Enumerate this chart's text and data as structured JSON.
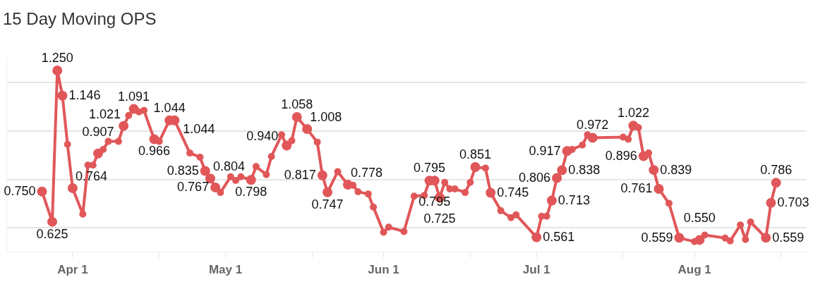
{
  "chart_data": {
    "type": "line",
    "title": "15 Day Moving OPS",
    "x": [
      "--03-26",
      "--03-28",
      "--03-29",
      "--03-30",
      "--03-31",
      "--04-01",
      "--04-03",
      "--04-04",
      "--04-05",
      "--04-06",
      "--04-07",
      "--04-08",
      "--04-10",
      "--04-11",
      "--04-12",
      "--04-13",
      "--04-14",
      "--04-15",
      "--04-17",
      "--04-18",
      "--04-20",
      "--04-21",
      "--04-24",
      "--04-26",
      "--04-27",
      "--04-28",
      "--04-29",
      "--04-30",
      "--05-02",
      "--05-03",
      "--05-04",
      "--05-06",
      "--05-07",
      "--05-09",
      "--05-10",
      "--05-12",
      "--05-13",
      "--05-14",
      "--05-15",
      "--05-17",
      "--05-19",
      "--05-20",
      "--05-21",
      "--05-23",
      "--05-25",
      "--05-26",
      "--05-27",
      "--05-29",
      "--05-30",
      "--06-01",
      "--06-02",
      "--06-05",
      "--06-07",
      "--06-09",
      "--06-10",
      "--06-11",
      "--06-12",
      "--06-13",
      "--06-14",
      "--06-15",
      "--06-17",
      "--06-18",
      "--06-19",
      "--06-21",
      "--06-22",
      "--06-24",
      "--06-26",
      "--06-27",
      "--07-01",
      "--07-02",
      "--07-03",
      "--07-04",
      "--07-05",
      "--07-06",
      "--07-07",
      "--07-08",
      "--07-10",
      "--07-11",
      "--07-12",
      "--07-18",
      "--07-19",
      "--07-20",
      "--07-21",
      "--07-22",
      "--07-23",
      "--07-24",
      "--07-25",
      "--07-27",
      "--07-29",
      "--08-01",
      "--08-02",
      "--08-03",
      "--08-07",
      "--08-08",
      "--08-10",
      "--08-11",
      "--08-12",
      "--08-15",
      "--08-16",
      "--08-17"
    ],
    "series": [
      {
        "color": "#e15759",
        "values": [
          0.75,
          0.625,
          1.25,
          1.146,
          0.945,
          0.764,
          0.657,
          0.859,
          0.859,
          0.907,
          0.924,
          0.957,
          0.957,
          1.021,
          1.064,
          1.091,
          1.079,
          1.085,
          0.966,
          0.957,
          1.044,
          1.044,
          0.909,
          0.892,
          0.835,
          0.804,
          0.767,
          0.746,
          0.811,
          0.796,
          0.811,
          0.798,
          0.853,
          0.82,
          0.895,
          0.984,
          0.94,
          0.96,
          1.058,
          1.008,
          0.954,
          0.817,
          0.747,
          0.832,
          0.778,
          0.776,
          0.749,
          0.74,
          0.686,
          0.582,
          0.603,
          0.585,
          0.731,
          0.734,
          0.795,
          0.795,
          0.725,
          0.788,
          0.761,
          0.761,
          0.746,
          0.788,
          0.851,
          0.847,
          0.745,
          0.671,
          0.642,
          0.654,
          0.561,
          0.648,
          0.648,
          0.713,
          0.806,
          0.838,
          0.917,
          0.924,
          0.942,
          0.984,
          0.972,
          0.975,
          0.966,
          1.022,
          1.014,
          0.896,
          0.909,
          0.839,
          0.761,
          0.701,
          0.559,
          0.543,
          0.55,
          0.57,
          0.558,
          0.546,
          0.612,
          0.552,
          0.624,
          0.559,
          0.703,
          0.786
        ],
        "value_labels": [
          "0.750",
          "0.625",
          "1.250",
          "1.146",
          null,
          "0.764",
          null,
          null,
          null,
          "0.907",
          null,
          null,
          null,
          "1.021",
          null,
          "1.091",
          null,
          null,
          "0.966",
          null,
          "1.044",
          "1.044",
          null,
          null,
          "0.835",
          "0.804",
          "0.767",
          null,
          null,
          null,
          null,
          "0.798",
          null,
          null,
          null,
          null,
          "0.940",
          null,
          "1.058",
          "1.008",
          null,
          "0.817",
          "0.747",
          null,
          "0.778",
          null,
          null,
          null,
          null,
          null,
          null,
          null,
          null,
          null,
          "0.795",
          "0.795",
          "0.725",
          null,
          null,
          null,
          null,
          null,
          "0.851",
          null,
          "0.745",
          null,
          null,
          null,
          "0.561",
          null,
          null,
          "0.713",
          "0.806",
          "0.838",
          "0.917",
          null,
          null,
          null,
          "0.972",
          null,
          null,
          "1.022",
          null,
          "0.896",
          null,
          "0.839",
          "0.761",
          null,
          "0.559",
          null,
          "0.550",
          null,
          null,
          null,
          null,
          null,
          null,
          "0.559",
          "0.703",
          "0.786"
        ]
      }
    ],
    "xlim": [
      "--03-19",
      "--08-23"
    ],
    "xticks": [
      {
        "value": "--04-01",
        "label": "Apr 1"
      },
      {
        "value": "--04-18",
        "label": null
      },
      {
        "value": "--05-01",
        "label": "May 1"
      },
      {
        "value": "--05-18",
        "label": null
      },
      {
        "value": "--06-01",
        "label": "Jun 1"
      },
      {
        "value": "--06-18",
        "label": null
      },
      {
        "value": "--07-01",
        "label": "Jul 1"
      },
      {
        "value": "--07-18",
        "label": null
      },
      {
        "value": "--08-01",
        "label": "Aug 1"
      },
      {
        "value": "--08-18",
        "label": null
      }
    ],
    "ylim": [
      0.5,
      1.3
    ],
    "yticks": [
      {
        "value": 0.6,
        "label": null
      },
      {
        "value": 0.8,
        "label": null
      },
      {
        "value": 1.0,
        "label": null
      },
      {
        "value": 1.2,
        "label": null
      }
    ],
    "tick_labels": "x",
    "grid": "y",
    "legend": false,
    "marker": "circle",
    "line_style": "solid"
  }
}
